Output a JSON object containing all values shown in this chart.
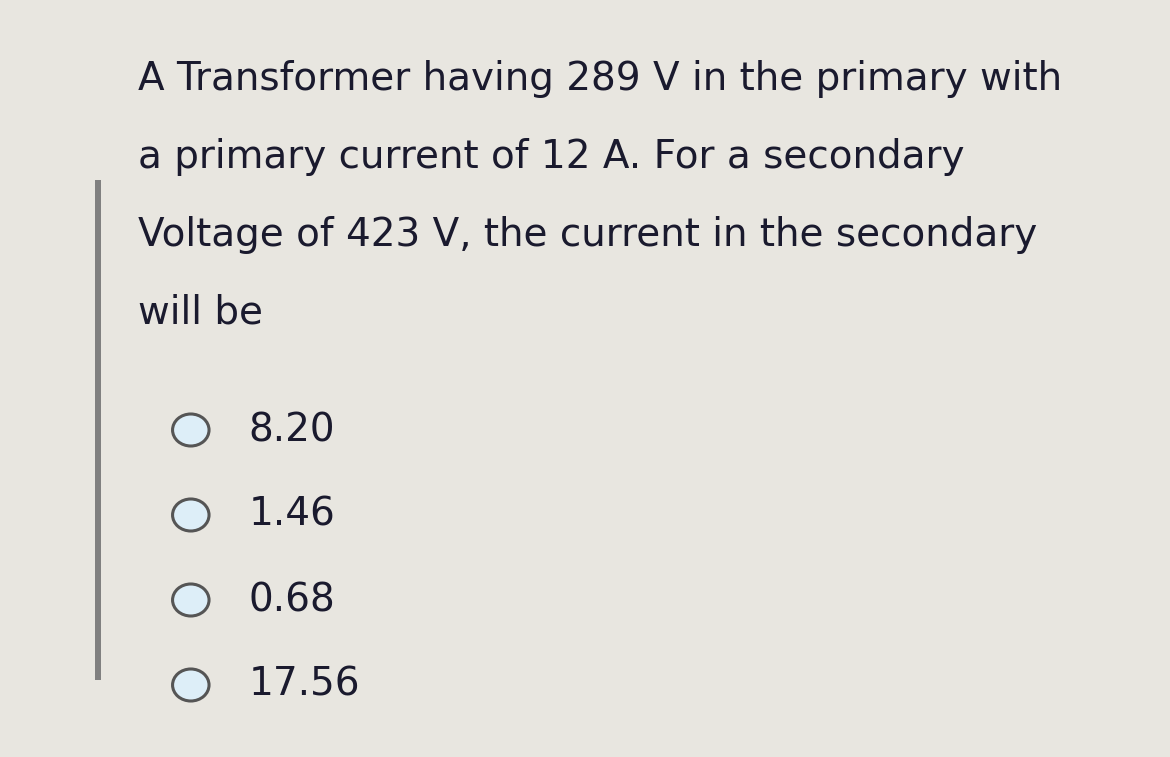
{
  "outer_bg": "#e8e6e0",
  "inner_bg": "#e8f2f8",
  "text_color": "#1a1a2e",
  "question_lines": [
    "A Transformer having 289 V in the primary with",
    "a primary current of 12 A. For a secondary",
    "Voltage of 423 V, the current in the secondary",
    "will be"
  ],
  "options": [
    "8.20",
    "1.46",
    "0.68",
    "17.56"
  ],
  "question_font_size": 28,
  "option_font_size": 28,
  "left_bar_color": "#808080",
  "circle_edge_color": "#555555",
  "circle_fill_color": "#ddeef8",
  "fig_width": 11.7,
  "fig_height": 7.57,
  "dpi": 100
}
